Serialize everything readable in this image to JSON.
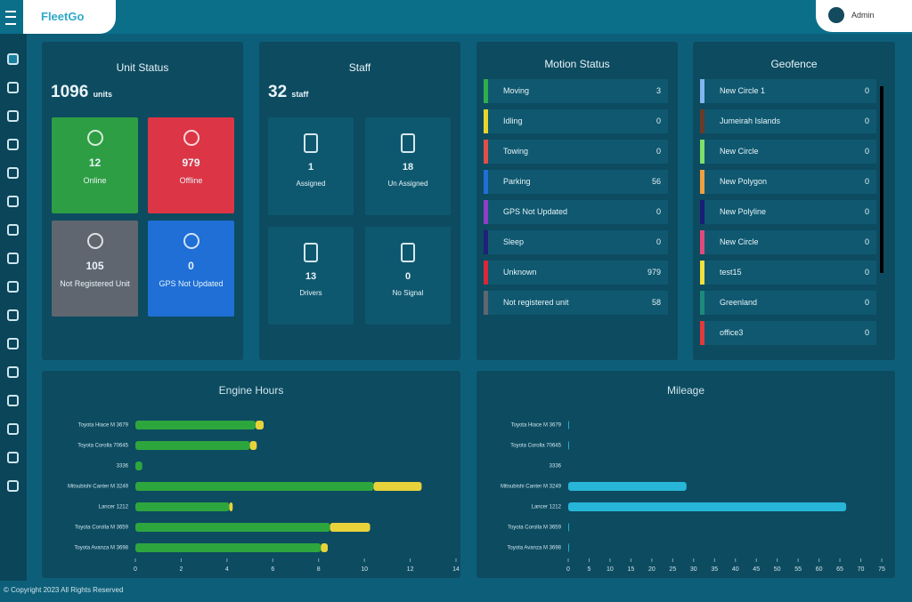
{
  "header": {
    "logo": "FleetGo",
    "user": "Admin"
  },
  "unit_status": {
    "title": "Unit Status",
    "total": "1096",
    "unit": "units",
    "tiles": [
      {
        "value": "12",
        "label": "Online",
        "color": "#2e9e44"
      },
      {
        "value": "979",
        "label": "Offline",
        "color": "#dc3545"
      },
      {
        "value": "105",
        "label": "Not Registered Unit",
        "color": "#5f6670"
      },
      {
        "value": "0",
        "label": "GPS Not Updated",
        "color": "#1f6fd6"
      }
    ]
  },
  "staff": {
    "title": "Staff",
    "total": "32",
    "unit": "staff",
    "tiles": [
      {
        "value": "1",
        "label": "Assigned"
      },
      {
        "value": "18",
        "label": "Un Assigned"
      },
      {
        "value": "13",
        "label": "Drivers"
      },
      {
        "value": "0",
        "label": "No Signal"
      }
    ]
  },
  "motion_status": {
    "title": "Motion Status",
    "rows": [
      {
        "label": "Moving",
        "value": "3",
        "color": "#2eae4a"
      },
      {
        "label": "Idling",
        "value": "0",
        "color": "#e8d62a"
      },
      {
        "label": "Towing",
        "value": "0",
        "color": "#e0504a"
      },
      {
        "label": "Parking",
        "value": "56",
        "color": "#1f6fd6"
      },
      {
        "label": "GPS Not Updated",
        "value": "0",
        "color": "#8e3fc4"
      },
      {
        "label": "Sleep",
        "value": "0",
        "color": "#20207a"
      },
      {
        "label": "Unknown",
        "value": "979",
        "color": "#d8283a"
      },
      {
        "label": "Not registered unit",
        "value": "58",
        "color": "#5f6670"
      }
    ]
  },
  "geofence": {
    "title": "Geofence",
    "rows": [
      {
        "label": "New Circle 1",
        "value": "0",
        "color": "#7fb6f0"
      },
      {
        "label": "Jumeirah Islands",
        "value": "0",
        "color": "#6a3b2a"
      },
      {
        "label": "New Circle",
        "value": "0",
        "color": "#7ee06a"
      },
      {
        "label": "New Polygon",
        "value": "0",
        "color": "#f0a040"
      },
      {
        "label": "New Polyline",
        "value": "0",
        "color": "#1c1c7a"
      },
      {
        "label": "New Circle",
        "value": "0",
        "color": "#e04a7a"
      },
      {
        "label": "test15",
        "value": "0",
        "color": "#f0e040"
      },
      {
        "label": "Greenland",
        "value": "0",
        "color": "#1d8a7a"
      },
      {
        "label": "office3",
        "value": "0",
        "color": "#e03a3a"
      }
    ]
  },
  "footer": "© Copyright 2023 All Rights Reserved",
  "chart_data": [
    {
      "type": "bar",
      "orientation": "horizontal",
      "stacked": true,
      "title": "Engine Hours",
      "categories": [
        "Toyota Hiace M 3679",
        "Toyota Corolla 70645",
        "3336",
        "Mitsubishi Canter M 3249",
        "Lancer 1212",
        "Toyota Corolla M 3659",
        "Toyota Avanza M 3698"
      ],
      "series": [
        {
          "color": "#2ea63e",
          "values": [
            5.25,
            5.0,
            0.3,
            10.4,
            4.1,
            8.5,
            8.1
          ]
        },
        {
          "color": "#e8d23a",
          "values": [
            0.35,
            0.3,
            0,
            2.1,
            0.15,
            1.75,
            0.3
          ]
        }
      ],
      "xlim": [
        0,
        14
      ],
      "xticks": [
        0,
        2,
        4,
        6,
        8,
        10,
        12,
        14
      ]
    },
    {
      "type": "bar",
      "orientation": "horizontal",
      "stacked": true,
      "title": "Mileage",
      "categories": [
        "Toyota Hiace M 3679",
        "Toyota Corolla 70645",
        "3336",
        "Mitsubishi Canter M 3249",
        "Lancer 1212",
        "Toyota Corolla M 3659",
        "Toyota Avanza M 3698"
      ],
      "series": [
        {
          "color": "#27b6d8",
          "values": [
            0.2,
            0.2,
            0,
            28.3,
            66.5,
            0.2,
            0.2
          ]
        }
      ],
      "xlim": [
        0,
        75
      ],
      "xticks": [
        0,
        5,
        10,
        15,
        20,
        25,
        30,
        35,
        40,
        45,
        50,
        55,
        60,
        65,
        70,
        75
      ]
    }
  ]
}
